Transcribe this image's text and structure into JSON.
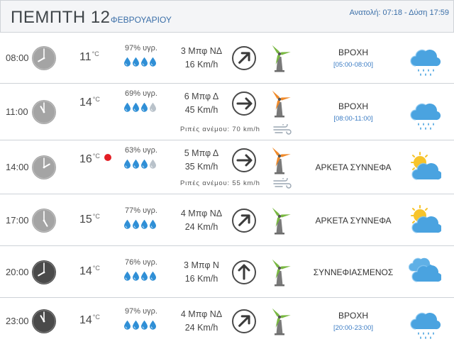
{
  "header": {
    "day": "ΠΕΜΠΤΗ 12",
    "month": "ΦΕΒΡΟΥΑΡΙΟΥ",
    "sun": "Ανατολή: 07:18  - Δύση 17:59"
  },
  "units": {
    "temp": "°C"
  },
  "rows": [
    {
      "time": "08:00",
      "clock_style": "light",
      "temp": "11",
      "humidity": "97% υγρ.",
      "drops_full": 4,
      "wind_beaufort": "3 Μπφ ΝΔ",
      "wind_speed": "16 Km/h",
      "gust": "",
      "arrow_icon": "arrow-ne-icon",
      "turbine_color": "green",
      "condition": "ΒΡΟΧΗ",
      "range": "[05:00-08:00]",
      "weather_icon": "rain-icon",
      "current": false
    },
    {
      "time": "11:00",
      "clock_style": "light",
      "temp": "14",
      "humidity": "69% υγρ.",
      "drops_full": 3,
      "wind_beaufort": "6 Μπφ Δ",
      "wind_speed": "45 Km/h",
      "gust": "Ριπές ανέμου: 70 km/h",
      "arrow_icon": "arrow-e-icon",
      "turbine_color": "orange",
      "condition": "ΒΡΟΧΗ",
      "range": "[08:00-11:00]",
      "weather_icon": "rain-icon",
      "current": false
    },
    {
      "time": "14:00",
      "clock_style": "light",
      "temp": "16",
      "humidity": "63% υγρ.",
      "drops_full": 3,
      "wind_beaufort": "5 Μπφ Δ",
      "wind_speed": "35 Km/h",
      "gust": "Ριπές ανέμου: 55 km/h",
      "arrow_icon": "arrow-e-icon",
      "turbine_color": "orange",
      "condition": "ΑΡΚΕΤΑ ΣΥΝΝΕΦΑ",
      "range": "",
      "weather_icon": "partly-cloudy-icon",
      "current": true
    },
    {
      "time": "17:00",
      "clock_style": "light",
      "temp": "15",
      "humidity": "77% υγρ.",
      "drops_full": 4,
      "wind_beaufort": "4 Μπφ ΝΔ",
      "wind_speed": "24 Km/h",
      "gust": "",
      "arrow_icon": "arrow-ne-icon",
      "turbine_color": "green",
      "condition": "ΑΡΚΕΤΑ ΣΥΝΝΕΦΑ",
      "range": "",
      "weather_icon": "partly-cloudy-icon",
      "current": false
    },
    {
      "time": "20:00",
      "clock_style": "dark",
      "temp": "14",
      "humidity": "76% υγρ.",
      "drops_full": 4,
      "wind_beaufort": "3 Μπφ Ν",
      "wind_speed": "16 Km/h",
      "gust": "",
      "arrow_icon": "arrow-n-icon",
      "turbine_color": "green",
      "condition": "ΣΥΝΝΕΦΙΑΣΜΕΝΟΣ",
      "range": "",
      "weather_icon": "cloudy-icon",
      "current": false
    },
    {
      "time": "23:00",
      "clock_style": "dark",
      "temp": "14",
      "humidity": "97% υγρ.",
      "drops_full": 4,
      "wind_beaufort": "4 Μπφ ΝΔ",
      "wind_speed": "24 Km/h",
      "gust": "",
      "arrow_icon": "arrow-ne-icon",
      "turbine_color": "green",
      "condition": "ΒΡΟΧΗ",
      "range": "[20:00-23:00]",
      "weather_icon": "rain-icon",
      "current": false
    }
  ],
  "colors": {
    "link_blue": "#3b7cc4",
    "drop_blue": "#2f8fd6",
    "cloud_blue": "#4aa3e0",
    "sun_yellow": "#f7c42b",
    "turbine_green": "#79b842",
    "turbine_orange": "#f08a2a",
    "current_dot": "#e31e24"
  }
}
